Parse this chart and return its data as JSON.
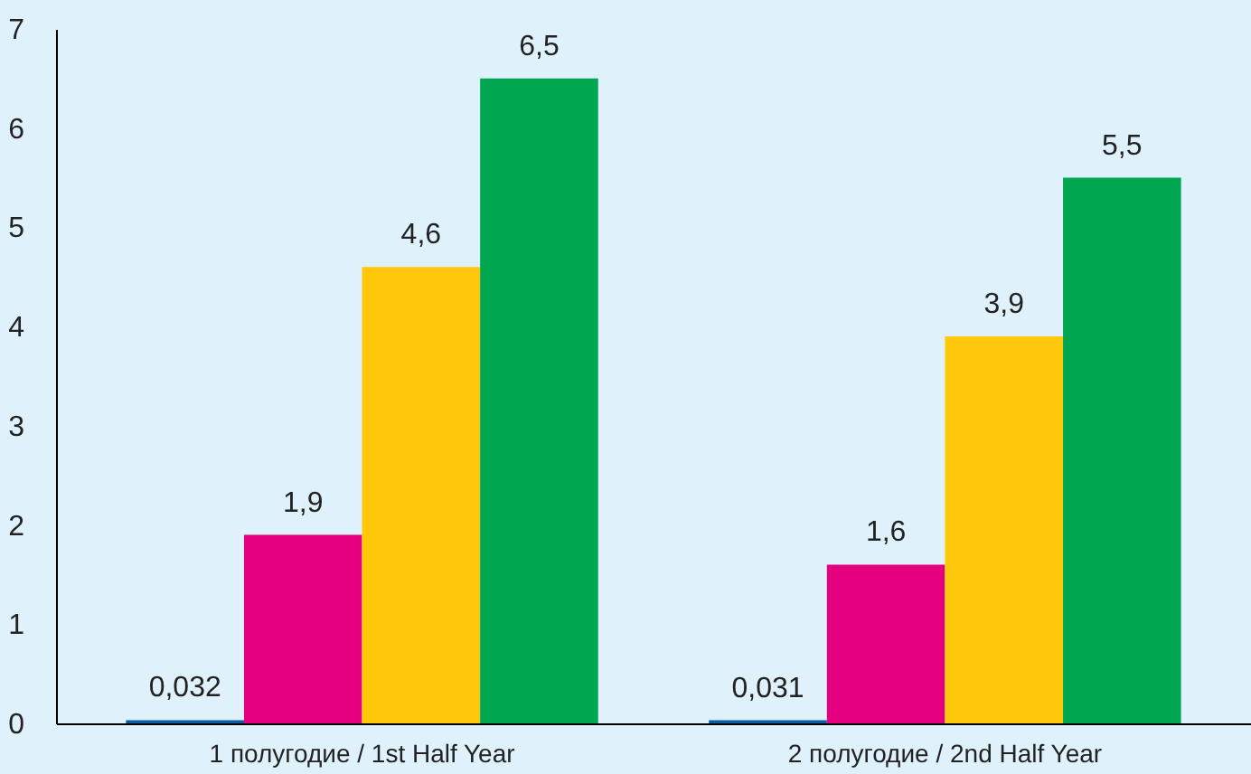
{
  "chart_data": {
    "type": "bar",
    "categories": [
      "1 полугодие / 1st Half Year",
      "2 полугодие / 2nd Half Year"
    ],
    "series": [
      {
        "color": "#0b5aa6",
        "values": [
          0.032,
          0.031
        ],
        "value_labels": [
          "0,032",
          "0,031"
        ]
      },
      {
        "color": "#e4007f",
        "values": [
          1.9,
          1.6
        ],
        "value_labels": [
          "1,9",
          "1,6"
        ]
      },
      {
        "color": "#ffc80b",
        "values": [
          4.6,
          3.9
        ],
        "value_labels": [
          "4,6",
          "3,9"
        ]
      },
      {
        "color": "#00a650",
        "values": [
          6.5,
          5.5
        ],
        "value_labels": [
          "6,5",
          "5,5"
        ]
      }
    ],
    "ylim": [
      0,
      7
    ],
    "yticks": [
      0,
      1,
      2,
      3,
      4,
      5,
      6,
      7
    ],
    "grid": false,
    "legend": false
  }
}
